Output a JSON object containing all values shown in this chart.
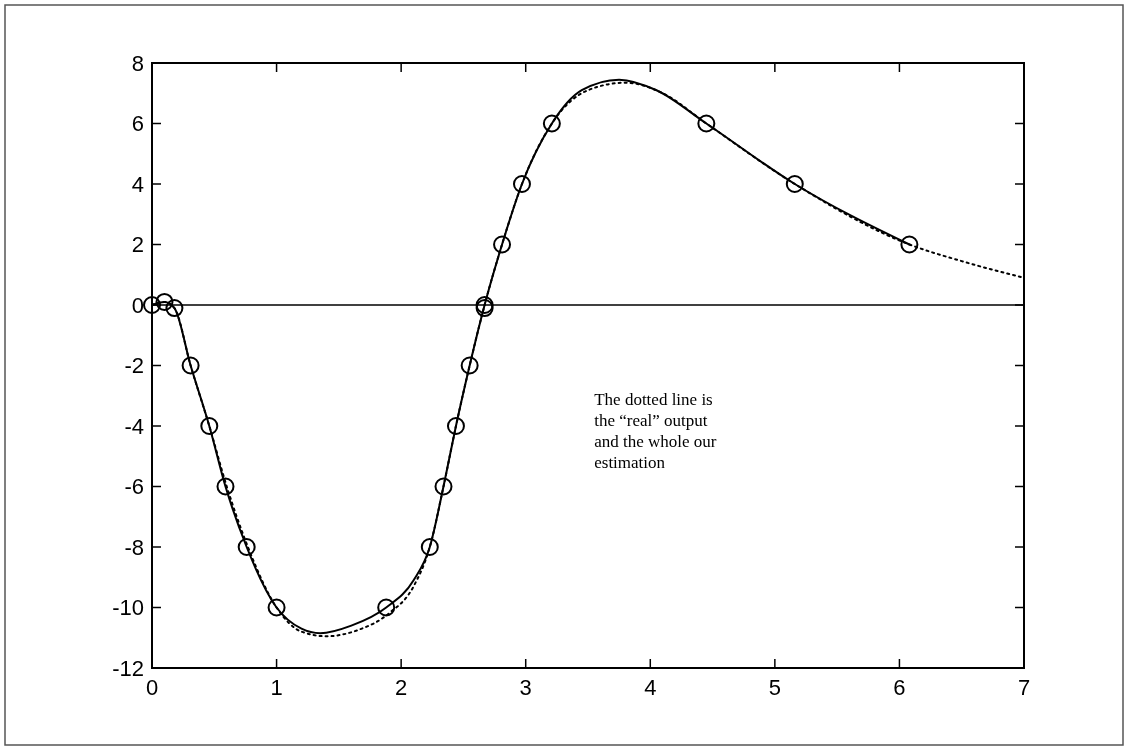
{
  "chart_data": {
    "type": "line",
    "xlim": [
      0,
      7
    ],
    "xticks": [
      0,
      1,
      2,
      3,
      4,
      5,
      6,
      7
    ],
    "ylim": [
      -12,
      8
    ],
    "yticks": [
      -12,
      -10,
      -8,
      -6,
      -4,
      -2,
      0,
      2,
      4,
      6,
      8
    ],
    "grid": false,
    "ref_lines": [
      {
        "axis": "y",
        "value": 0,
        "color": "#000000",
        "line_style": "solid"
      }
    ],
    "annotations": [
      "The dotted line is\nthe “real” output\nand the whole our\nestimation"
    ],
    "series": [
      {
        "type": "line",
        "color": "#000000",
        "line_style": "dotted",
        "marker": "none",
        "x": [
          0,
          0.1,
          0.18,
          0.31,
          0.46,
          0.6,
          0.77,
          1.0,
          1.2,
          1.4,
          1.65,
          1.9,
          2.1,
          2.23,
          2.34,
          2.44,
          2.55,
          2.67,
          2.81,
          2.97,
          3.21,
          3.5,
          3.8,
          4.1,
          4.45,
          5.16,
          6.08,
          6.5,
          7
        ],
        "values": [
          0,
          0.1,
          -0.1,
          -2,
          -4,
          -6,
          -8,
          -10,
          -10.8,
          -10.95,
          -10.75,
          -10.2,
          -9.3,
          -8,
          -6,
          -4,
          -2,
          0,
          2,
          4,
          6,
          7.1,
          7.35,
          7.0,
          6,
          4,
          2,
          1.45,
          0.9
        ]
      },
      {
        "type": "line",
        "color": "#000000",
        "line_style": "solid",
        "marker": "none",
        "x": [
          0,
          0.1,
          0.18,
          0.31,
          0.46,
          0.59,
          0.76,
          1.0,
          1.2,
          1.35,
          1.6,
          1.88,
          2.1,
          2.23,
          2.34,
          2.44,
          2.55,
          2.67,
          2.81,
          2.97,
          3.21,
          3.45,
          3.75,
          4.05,
          4.45,
          5.16,
          6.08
        ],
        "values": [
          0,
          0.1,
          -0.1,
          -2,
          -4,
          -6,
          -8,
          -10,
          -10.7,
          -10.85,
          -10.6,
          -10,
          -9.1,
          -8,
          -6,
          -4,
          -2,
          0,
          2,
          4,
          6,
          7.1,
          7.45,
          7.1,
          6,
          4,
          2
        ]
      },
      {
        "type": "scatter",
        "color": "#000000",
        "marker": "circle",
        "x": [
          0,
          0.1,
          0.18,
          0.31,
          0.46,
          0.59,
          0.76,
          1.0,
          1.88,
          2.23,
          2.34,
          2.44,
          2.55,
          2.67,
          2.67,
          2.81,
          2.97,
          3.21,
          4.45,
          5.16,
          6.08
        ],
        "values": [
          0,
          0.1,
          -0.1,
          -2,
          -4,
          -6,
          -8,
          -10,
          -10,
          -8,
          -6,
          -4,
          -2,
          0,
          -0.1,
          2,
          4,
          6,
          6,
          4,
          2
        ]
      }
    ]
  }
}
